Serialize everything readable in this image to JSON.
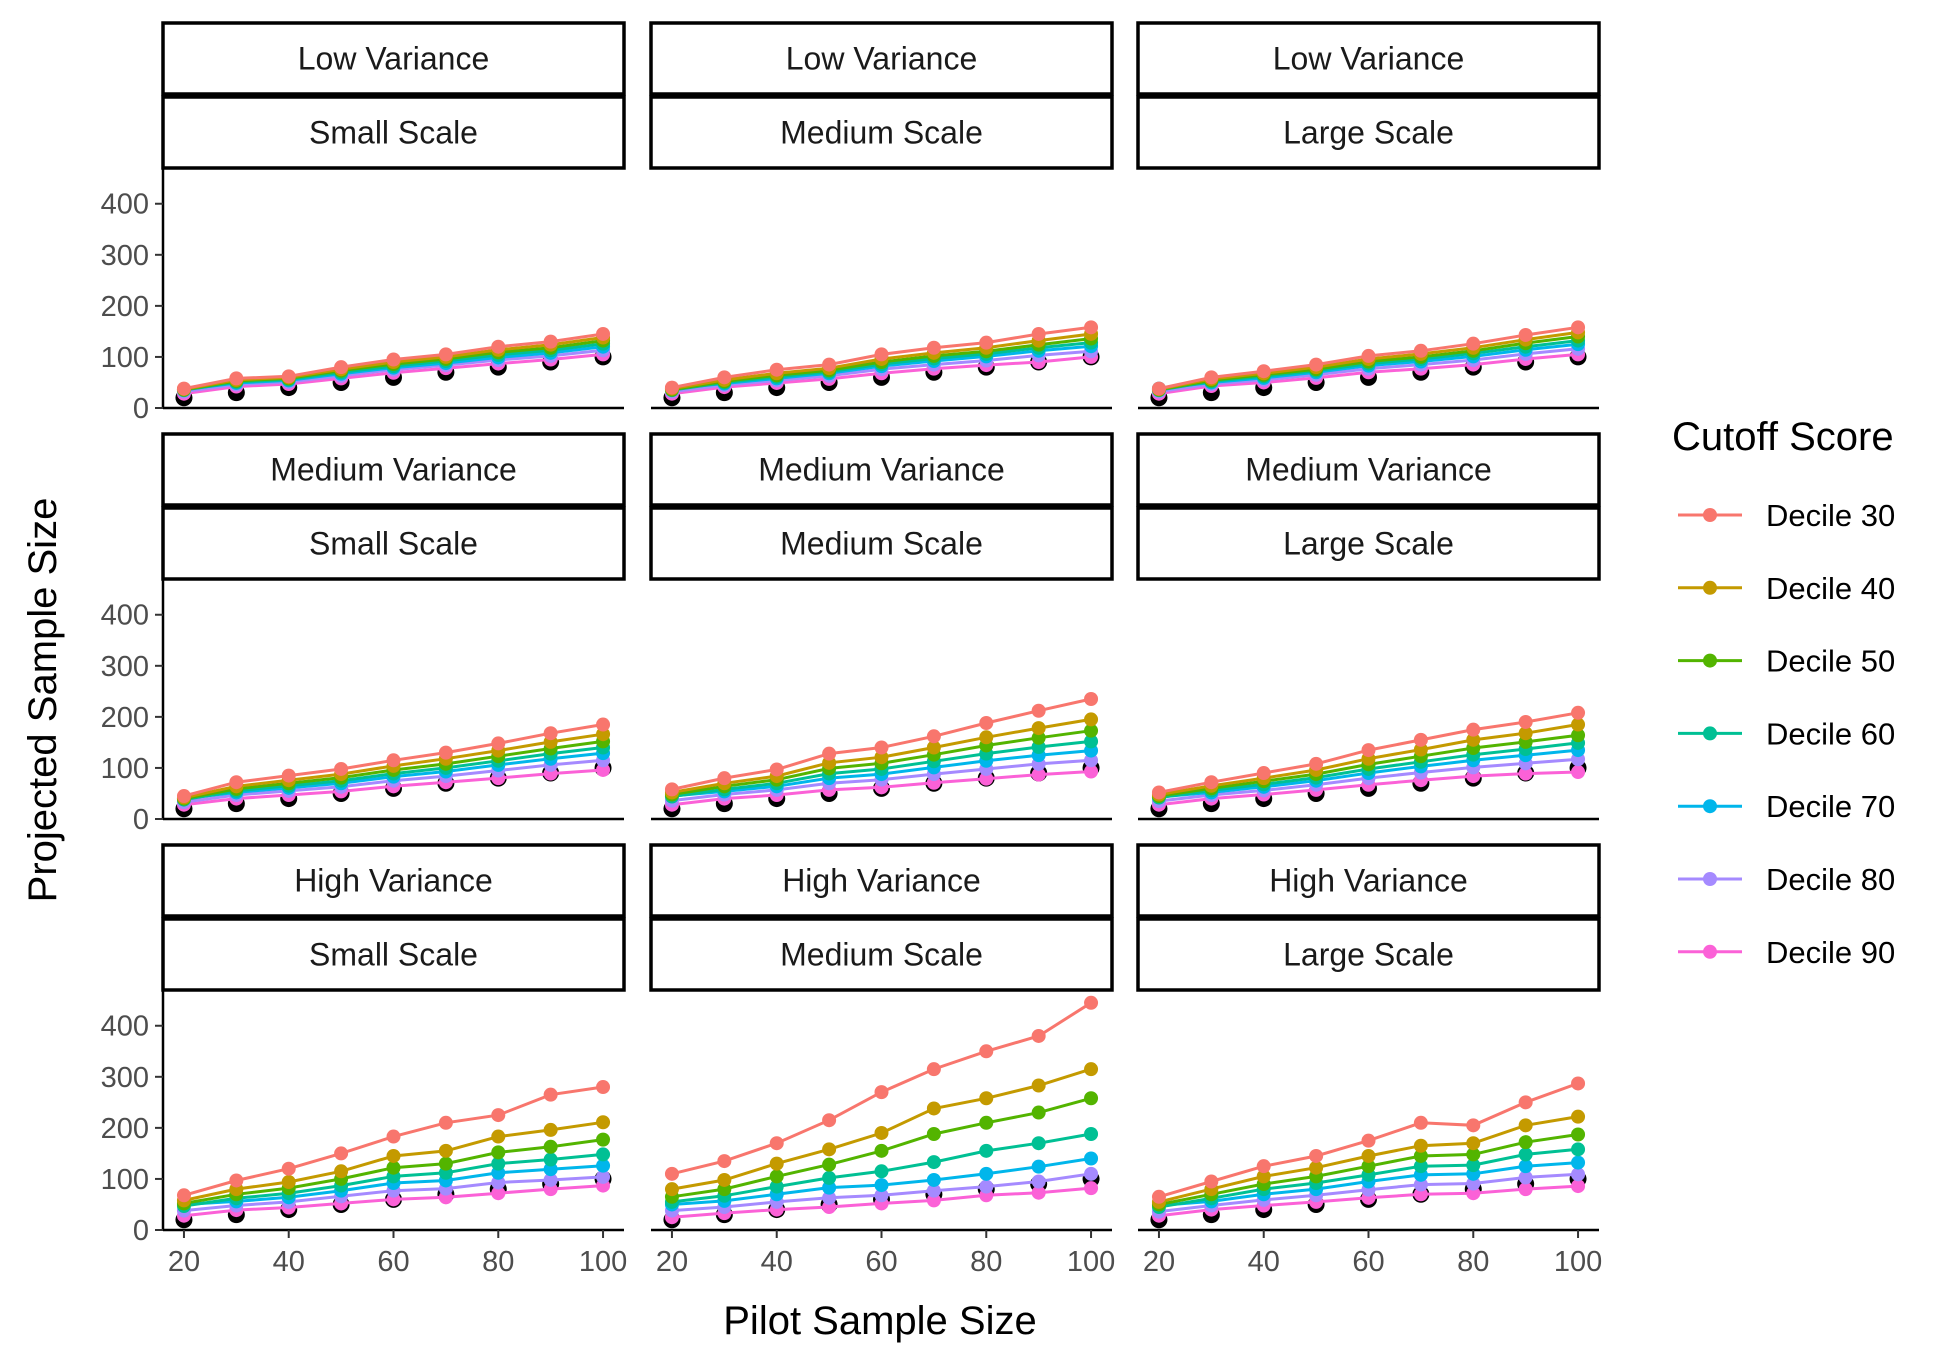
{
  "chart_data": {
    "type": "line",
    "xlabel": "Pilot Sample Size",
    "ylabel": "Projected Sample Size",
    "x": [
      20,
      30,
      40,
      50,
      60,
      70,
      80,
      90,
      100
    ],
    "xticks": [
      20,
      40,
      60,
      80,
      100
    ],
    "yticks": [
      0,
      100,
      200,
      300,
      400
    ],
    "xlim": [
      16,
      104
    ],
    "ylim": [
      0,
      470
    ],
    "grid": false,
    "legend": {
      "title": "Cutoff Score",
      "position": "right",
      "entries": [
        "Decile 30",
        "Decile 40",
        "Decile 50",
        "Decile 60",
        "Decile 70",
        "Decile 80",
        "Decile 90"
      ]
    },
    "colors": {
      "Decile 30": "#F8766D",
      "Decile 40": "#C49A00",
      "Decile 50": "#53B400",
      "Decile 60": "#00C094",
      "Decile 70": "#00B6EB",
      "Decile 80": "#A58AFF",
      "Decile 90": "#FB61D7",
      "reference": "#000000"
    },
    "reference_points": [
      20,
      30,
      40,
      50,
      60,
      70,
      80,
      90,
      100
    ],
    "panels": [
      {
        "row_label": "Low Variance",
        "col_label": "Small Scale",
        "series": [
          {
            "name": "Decile 30",
            "values": [
              38,
              58,
              62,
              80,
              95,
              105,
              120,
              130,
              145
            ]
          },
          {
            "name": "Decile 40",
            "values": [
              37,
              55,
              60,
              76,
              90,
              100,
              114,
              124,
              138
            ]
          },
          {
            "name": "Decile 50",
            "values": [
              36,
              53,
              58,
              73,
              86,
              96,
              109,
              118,
              132
            ]
          },
          {
            "name": "Decile 60",
            "values": [
              35,
              51,
              56,
              70,
              82,
              92,
              104,
              113,
              126
            ]
          },
          {
            "name": "Decile 70",
            "values": [
              36,
              49,
              54,
              67,
              79,
              88,
              99,
              108,
              120
            ]
          },
          {
            "name": "Decile 80",
            "values": [
              32,
              46,
              51,
              63,
              75,
              84,
              94,
              102,
              113
            ]
          },
          {
            "name": "Decile 90",
            "values": [
              28,
              42,
              47,
              58,
              69,
              78,
              87,
              95,
              105
            ]
          }
        ]
      },
      {
        "row_label": "Low Variance",
        "col_label": "Medium Scale",
        "series": [
          {
            "name": "Decile 30",
            "values": [
              40,
              60,
              75,
              85,
              105,
              118,
              128,
              145,
              158
            ]
          },
          {
            "name": "Decile 40",
            "values": [
              38,
              55,
              68,
              78,
              96,
              108,
              118,
              132,
              145
            ]
          },
          {
            "name": "Decile 50",
            "values": [
              36,
              52,
              64,
              74,
              90,
              102,
              111,
              124,
              136
            ]
          },
          {
            "name": "Decile 60",
            "values": [
              35,
              50,
              61,
              71,
              86,
              97,
              106,
              118,
              128
            ]
          },
          {
            "name": "Decile 70",
            "values": [
              38,
              48,
              58,
              68,
              82,
              92,
              101,
              112,
              121
            ]
          },
          {
            "name": "Decile 80",
            "values": [
              32,
              45,
              54,
              63,
              76,
              85,
              93,
              103,
              111
            ]
          },
          {
            "name": "Decile 90",
            "values": [
              28,
              41,
              49,
              57,
              68,
              77,
              84,
              90,
              100
            ]
          }
        ]
      },
      {
        "row_label": "Low Variance",
        "col_label": "Large Scale",
        "series": [
          {
            "name": "Decile 30",
            "values": [
              38,
              60,
              72,
              85,
              102,
              112,
              126,
              143,
              158
            ]
          },
          {
            "name": "Decile 40",
            "values": [
              37,
              57,
              68,
              80,
              96,
              106,
              118,
              134,
              148
            ]
          },
          {
            "name": "Decile 50",
            "values": [
              36,
              54,
              65,
              76,
              91,
              100,
              112,
              127,
              140
            ]
          },
          {
            "name": "Decile 60",
            "values": [
              35,
              52,
              62,
              73,
              87,
              96,
              107,
              120,
              132
            ]
          },
          {
            "name": "Decile 70",
            "values": [
              38,
              50,
              59,
              70,
              83,
              91,
              101,
              114,
              125
            ]
          },
          {
            "name": "Decile 80",
            "values": [
              32,
              47,
              55,
              65,
              77,
              85,
              94,
              106,
              116
            ]
          },
          {
            "name": "Decile 90",
            "values": [
              28,
              43,
              50,
              59,
              70,
              77,
              85,
              96,
              105
            ]
          }
        ]
      },
      {
        "row_label": "Medium Variance",
        "col_label": "Small Scale",
        "series": [
          {
            "name": "Decile 30",
            "values": [
              45,
              72,
              85,
              98,
              115,
              130,
              148,
              168,
              185
            ]
          },
          {
            "name": "Decile 40",
            "values": [
              42,
              64,
              76,
              88,
              104,
              118,
              134,
              151,
              166
            ]
          },
          {
            "name": "Decile 50",
            "values": [
              40,
              59,
              70,
              81,
              96,
              108,
              123,
              138,
              152
            ]
          },
          {
            "name": "Decile 60",
            "values": [
              38,
              55,
              65,
              75,
              89,
              100,
              114,
              128,
              140
            ]
          },
          {
            "name": "Decile 70",
            "values": [
              40,
              52,
              61,
              70,
              83,
              93,
              106,
              118,
              129
            ]
          },
          {
            "name": "Decile 80",
            "values": [
              33,
              47,
              55,
              63,
              75,
              84,
              95,
              106,
              115
            ]
          },
          {
            "name": "Decile 90",
            "values": [
              28,
              40,
              47,
              54,
              64,
              72,
              80,
              89,
              96
            ]
          }
        ]
      },
      {
        "row_label": "Medium Variance",
        "col_label": "Medium Scale",
        "series": [
          {
            "name": "Decile 30",
            "values": [
              58,
              80,
              97,
              128,
              140,
              162,
              188,
              212,
              235
            ]
          },
          {
            "name": "Decile 40",
            "values": [
              52,
              70,
              84,
              110,
              121,
              140,
              160,
              178,
              195
            ]
          },
          {
            "name": "Decile 50",
            "values": [
              48,
              64,
              77,
              99,
              109,
              126,
              144,
              159,
              173
            ]
          },
          {
            "name": "Decile 60",
            "values": [
              44,
              58,
              70,
              89,
              98,
              113,
              128,
              141,
              152
            ]
          },
          {
            "name": "Decile 70",
            "values": [
              45,
              54,
              64,
              80,
              88,
              101,
              114,
              125,
              134
            ]
          },
          {
            "name": "Decile 80",
            "values": [
              36,
              48,
              57,
              70,
              77,
              88,
              98,
              108,
              115
            ]
          },
          {
            "name": "Decile 90",
            "values": [
              28,
              40,
              47,
              57,
              62,
              71,
              79,
              87,
              93
            ]
          }
        ]
      },
      {
        "row_label": "Medium Variance",
        "col_label": "Large Scale",
        "series": [
          {
            "name": "Decile 30",
            "values": [
              52,
              72,
              90,
              108,
              135,
              155,
              175,
              190,
              208
            ]
          },
          {
            "name": "Decile 40",
            "values": [
              48,
              65,
              80,
              96,
              118,
              136,
              155,
              168,
              185
            ]
          },
          {
            "name": "Decile 50",
            "values": [
              45,
              60,
              74,
              88,
              107,
              123,
              139,
              151,
              164
            ]
          },
          {
            "name": "Decile 60",
            "values": [
              42,
              56,
              68,
              81,
              98,
              112,
              126,
              137,
              149
            ]
          },
          {
            "name": "Decile 70",
            "values": [
              43,
              52,
              63,
              75,
              90,
              103,
              115,
              125,
              135
            ]
          },
          {
            "name": "Decile 80",
            "values": [
              35,
              47,
              56,
              67,
              80,
              91,
              101,
              109,
              117
            ]
          },
          {
            "name": "Decile 90",
            "values": [
              28,
              40,
              48,
              57,
              67,
              76,
              84,
              89,
              92
            ]
          }
        ]
      },
      {
        "row_label": "High Variance",
        "col_label": "Small Scale",
        "series": [
          {
            "name": "Decile 30",
            "values": [
              68,
              97,
              120,
              150,
              183,
              210,
              225,
              265,
              280
            ]
          },
          {
            "name": "Decile 40",
            "values": [
              58,
              80,
              94,
              115,
              145,
              155,
              183,
              196,
              211
            ]
          },
          {
            "name": "Decile 50",
            "values": [
              52,
              70,
              82,
              100,
              122,
              130,
              152,
              163,
              177
            ]
          },
          {
            "name": "Decile 60",
            "values": [
              47,
              62,
              72,
              87,
              105,
              112,
              130,
              138,
              148
            ]
          },
          {
            "name": "Decile 70",
            "values": [
              50,
              56,
              64,
              77,
              92,
              97,
              112,
              119,
              126
            ]
          },
          {
            "name": "Decile 80",
            "values": [
              38,
              48,
              55,
              66,
              77,
              81,
              93,
              98,
              104
            ]
          },
          {
            "name": "Decile 90",
            "values": [
              28,
              39,
              44,
              52,
              60,
              64,
              72,
              80,
              87
            ]
          }
        ]
      },
      {
        "row_label": "High Variance",
        "col_label": "Medium Scale",
        "series": [
          {
            "name": "Decile 30",
            "values": [
              110,
              135,
              170,
              215,
              270,
              315,
              350,
              380,
              445
            ]
          },
          {
            "name": "Decile 40",
            "values": [
              80,
              98,
              130,
              158,
              190,
              238,
              258,
              283,
              315
            ]
          },
          {
            "name": "Decile 50",
            "values": [
              65,
              80,
              105,
              128,
              155,
              188,
              210,
              230,
              258
            ]
          },
          {
            "name": "Decile 60",
            "values": [
              55,
              67,
              85,
              102,
              115,
              133,
              155,
              170,
              188
            ]
          },
          {
            "name": "Decile 70",
            "values": [
              50,
              57,
              70,
              83,
              88,
              98,
              110,
              124,
              140
            ]
          },
          {
            "name": "Decile 80",
            "values": [
              38,
              45,
              55,
              63,
              68,
              77,
              85,
              95,
              110
            ]
          },
          {
            "name": "Decile 90",
            "values": [
              25,
              33,
              40,
              45,
              52,
              58,
              68,
              73,
              82
            ]
          }
        ]
      },
      {
        "row_label": "High Variance",
        "col_label": "Large Scale",
        "series": [
          {
            "name": "Decile 30",
            "values": [
              65,
              95,
              125,
              145,
              175,
              210,
              205,
              250,
              287
            ]
          },
          {
            "name": "Decile 40",
            "values": [
              55,
              80,
              105,
              122,
              145,
              165,
              170,
              205,
              222
            ]
          },
          {
            "name": "Decile 50",
            "values": [
              50,
              70,
              90,
              105,
              125,
              145,
              148,
              172,
              187
            ]
          },
          {
            "name": "Decile 60",
            "values": [
              45,
              62,
              80,
              92,
              108,
              125,
              127,
              148,
              158
            ]
          },
          {
            "name": "Decile 70",
            "values": [
              48,
              56,
              70,
              80,
              95,
              108,
              110,
              125,
              132
            ]
          },
          {
            "name": "Decile 80",
            "values": [
              36,
              48,
              59,
              68,
              79,
              89,
              91,
              103,
              109
            ]
          },
          {
            "name": "Decile 90",
            "values": [
              28,
              40,
              48,
              55,
              63,
              70,
              72,
              80,
              86
            ]
          }
        ]
      }
    ]
  }
}
